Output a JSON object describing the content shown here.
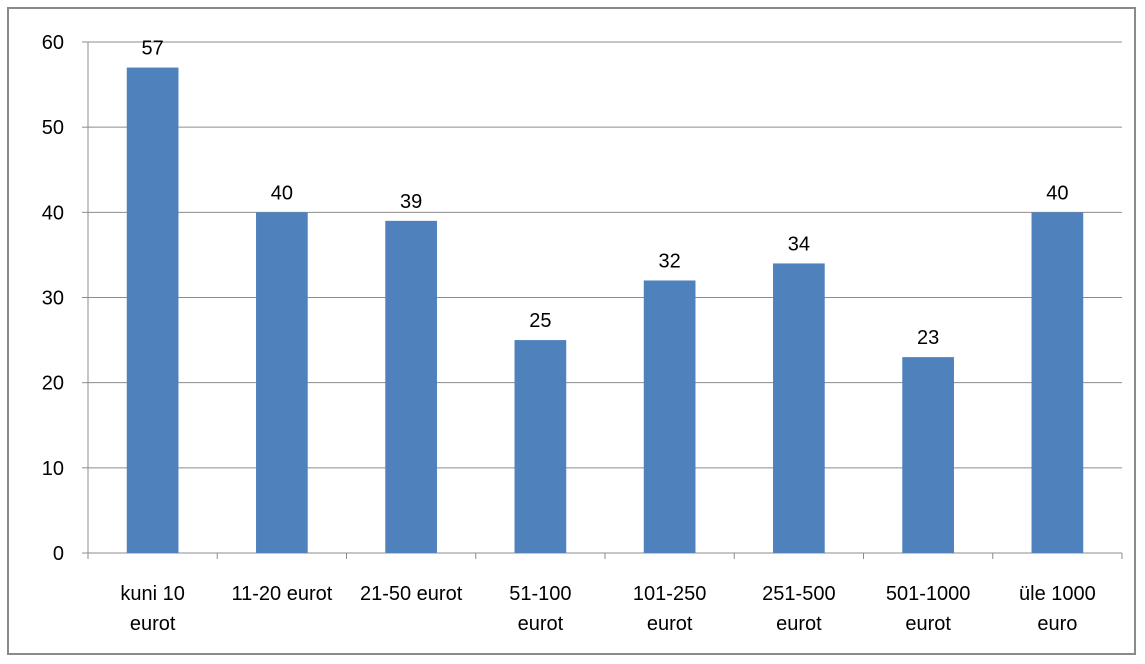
{
  "chart_data": {
    "type": "bar",
    "title": "",
    "xlabel": "",
    "ylabel": "",
    "categories": [
      [
        "kuni 10",
        "eurot"
      ],
      [
        "11-20 eurot"
      ],
      [
        "21-50 eurot"
      ],
      [
        "51-100",
        "eurot"
      ],
      [
        "101-250",
        "eurot"
      ],
      [
        "251-500",
        "eurot"
      ],
      [
        "501-1000",
        "eurot"
      ],
      [
        "üle 1000",
        "euro"
      ]
    ],
    "values": [
      57,
      40,
      39,
      25,
      32,
      34,
      23,
      40
    ],
    "ylim": [
      0,
      60
    ],
    "yticks": [
      0,
      10,
      20,
      30,
      40,
      50,
      60
    ],
    "grid": true,
    "legend": "none",
    "colors": {
      "bar": "#4f81bd",
      "grid": "#8c8c8c",
      "axis": "#8c8c8c",
      "frame": "#8a8a8a",
      "text": "#000000"
    }
  }
}
